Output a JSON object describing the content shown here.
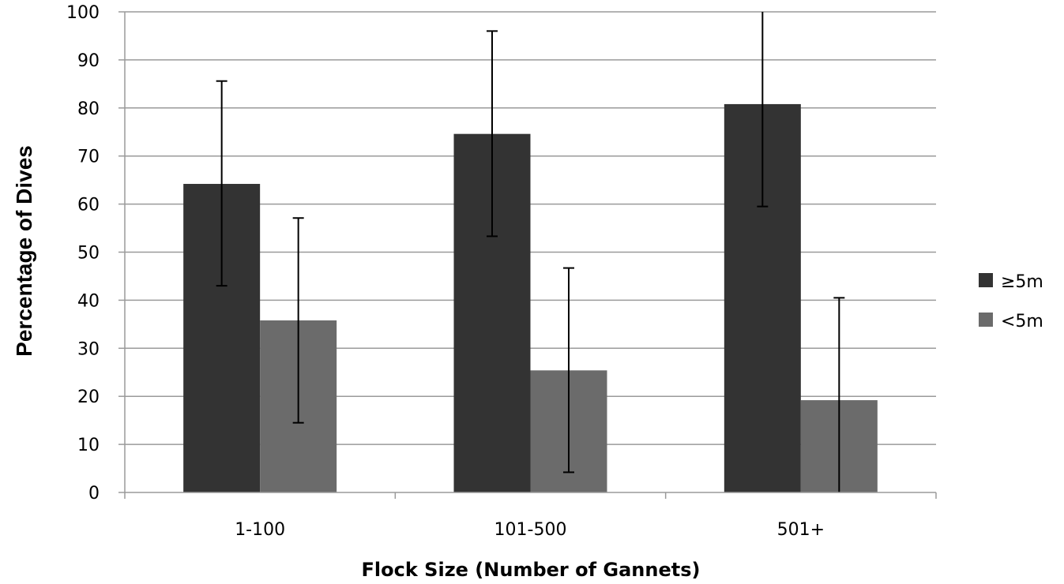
{
  "chart_data": {
    "type": "bar",
    "title": "",
    "xlabel": "Flock Size (Number of Gannets)",
    "ylabel": "Percentage of Dives",
    "ylim": [
      0,
      100
    ],
    "yticks": [
      0,
      10,
      20,
      30,
      40,
      50,
      60,
      70,
      80,
      90,
      100
    ],
    "categories": [
      "1-100",
      "101-500",
      "501+"
    ],
    "grid": true,
    "legend_position": "right",
    "series": [
      {
        "name": "≥5m",
        "color": "#333333",
        "values": [
          64.2,
          74.6,
          80.8
        ],
        "error_low": [
          43,
          53.3,
          59.5
        ],
        "error_high": [
          85.6,
          96,
          100
        ]
      },
      {
        "name": "<5m",
        "color": "#6b6b6b",
        "values": [
          35.8,
          25.4,
          19.2
        ],
        "error_low": [
          14.5,
          4.2,
          0
        ],
        "error_high": [
          57.1,
          46.7,
          40.5
        ]
      }
    ]
  }
}
